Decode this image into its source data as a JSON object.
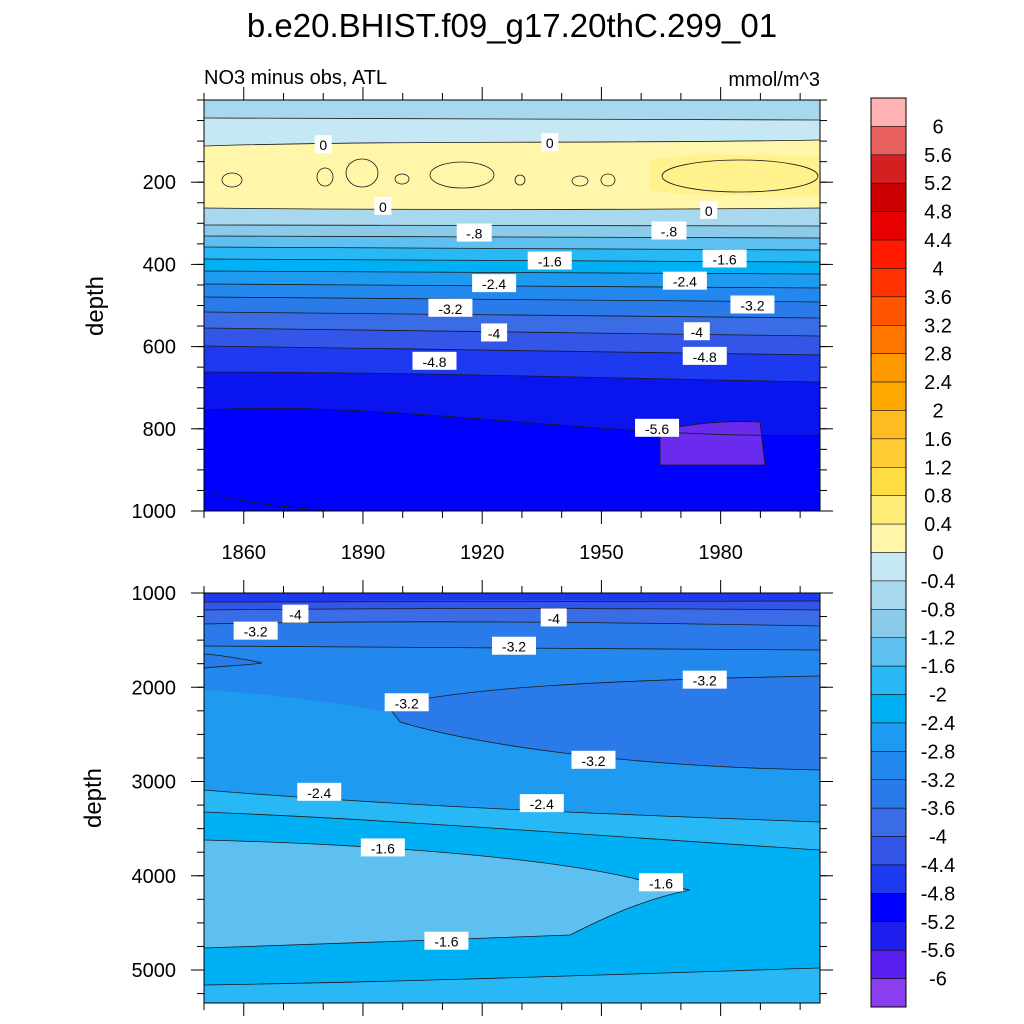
{
  "title": "b.e20.BHIST.f09_g17.20thC.299_01",
  "chart_data": {
    "type": "contour",
    "subtitle_left": "NO3 minus obs, ATL",
    "subtitle_right": "mmol/m^3",
    "xlim": [
      1850,
      2005
    ],
    "x_ticks": [
      1860,
      1890,
      1920,
      1950,
      1980
    ],
    "x_ticks_label": [
      "1860",
      "1890",
      "1920",
      "1950",
      "1980"
    ],
    "panels": [
      {
        "name": "upper",
        "ylabel": "depth",
        "ylim": [
          0,
          1000
        ],
        "y_ticks": [
          200,
          400,
          600,
          800,
          1000
        ],
        "y_ticks_label": [
          "200",
          "400",
          "600",
          "800",
          "1000"
        ],
        "contour_labels": [
          {
            "text": "0",
            "x": 1880,
            "y": 110
          },
          {
            "text": "0",
            "x": 1937,
            "y": 105
          },
          {
            "text": "0",
            "x": 1895,
            "y": 260
          },
          {
            "text": "0",
            "x": 1977,
            "y": 270
          },
          {
            "text": "-.8",
            "x": 1918,
            "y": 325
          },
          {
            "text": "-.8",
            "x": 1967,
            "y": 320
          },
          {
            "text": "-1.6",
            "x": 1937,
            "y": 393
          },
          {
            "text": "-1.6",
            "x": 1981,
            "y": 388
          },
          {
            "text": "-2.4",
            "x": 1923,
            "y": 448
          },
          {
            "text": "-2.4",
            "x": 1971,
            "y": 442
          },
          {
            "text": "-3.2",
            "x": 1912,
            "y": 508
          },
          {
            "text": "-3.2",
            "x": 1988,
            "y": 500
          },
          {
            "text": "-4",
            "x": 1923,
            "y": 568
          },
          {
            "text": "-4",
            "x": 1974,
            "y": 565
          },
          {
            "text": "-4.8",
            "x": 1908,
            "y": 637
          },
          {
            "text": "-4.8",
            "x": 1976,
            "y": 625
          },
          {
            "text": "-5.6",
            "x": 1964,
            "y": 800
          }
        ]
      },
      {
        "name": "lower",
        "ylabel": "depth",
        "ylim": [
          1000,
          5350
        ],
        "y_ticks": [
          1000,
          2000,
          3000,
          4000,
          5000
        ],
        "y_ticks_label": [
          "1000",
          "2000",
          "3000",
          "4000",
          "5000"
        ],
        "contour_labels": [
          {
            "text": "-4",
            "x": 1873,
            "y": 1230
          },
          {
            "text": "-4",
            "x": 1938,
            "y": 1270
          },
          {
            "text": "-3.2",
            "x": 1863,
            "y": 1410
          },
          {
            "text": "-3.2",
            "x": 1928,
            "y": 1570
          },
          {
            "text": "-3.2",
            "x": 1976,
            "y": 1930
          },
          {
            "text": "-3.2",
            "x": 1901,
            "y": 2170
          },
          {
            "text": "-3.2",
            "x": 1948,
            "y": 2780
          },
          {
            "text": "-2.4",
            "x": 1879,
            "y": 3120
          },
          {
            "text": "-2.4",
            "x": 1935,
            "y": 3240
          },
          {
            "text": "-1.6",
            "x": 1895,
            "y": 3710
          },
          {
            "text": "-1.6",
            "x": 1965,
            "y": 4080
          },
          {
            "text": "-1.6",
            "x": 1911,
            "y": 4700
          }
        ]
      }
    ],
    "colorbar": {
      "levels": [
        6,
        5.6,
        5.2,
        4.8,
        4.4,
        4,
        3.6,
        3.2,
        2.8,
        2.4,
        2,
        1.6,
        1.2,
        0.8,
        0.4,
        0,
        -0.4,
        -0.8,
        -1.2,
        -1.6,
        -2,
        -2.4,
        -2.8,
        -3.2,
        -3.6,
        -4,
        -4.4,
        -4.8,
        -5.2,
        -5.6,
        -6
      ],
      "labels": [
        "6",
        "5.6",
        "5.2",
        "4.8",
        "4.4",
        "4",
        "3.6",
        "3.2",
        "2.8",
        "2.4",
        "2",
        "1.6",
        "1.2",
        "0.8",
        "0.4",
        "0",
        "-0.4",
        "-0.8",
        "-1.2",
        "-1.6",
        "-2",
        "-2.4",
        "-2.8",
        "-3.2",
        "-3.6",
        "-4",
        "-4.4",
        "-4.8",
        "-5.2",
        "-5.6",
        "-6"
      ],
      "colors": [
        "#FFB3B3",
        "#E86060",
        "#D42020",
        "#CC0000",
        "#E60000",
        "#FF1A00",
        "#FF3300",
        "#FF5500",
        "#FF7700",
        "#FF9900",
        "#FFAA00",
        "#FFBB22",
        "#FFCC33",
        "#FFDD44",
        "#FFEE77",
        "#FFF6AA",
        "#C6E7F4",
        "#A8D8EE",
        "#8CCAEA",
        "#5DC0F0",
        "#28B8F5",
        "#00B0F5",
        "#1E9AF0",
        "#2388EE",
        "#2A7AEA",
        "#3A6CE6",
        "#3355E8",
        "#1E3AF0",
        "#0000FF",
        "#1E1EEE",
        "#5A1EEE",
        "#8A3EEE"
      ]
    }
  }
}
